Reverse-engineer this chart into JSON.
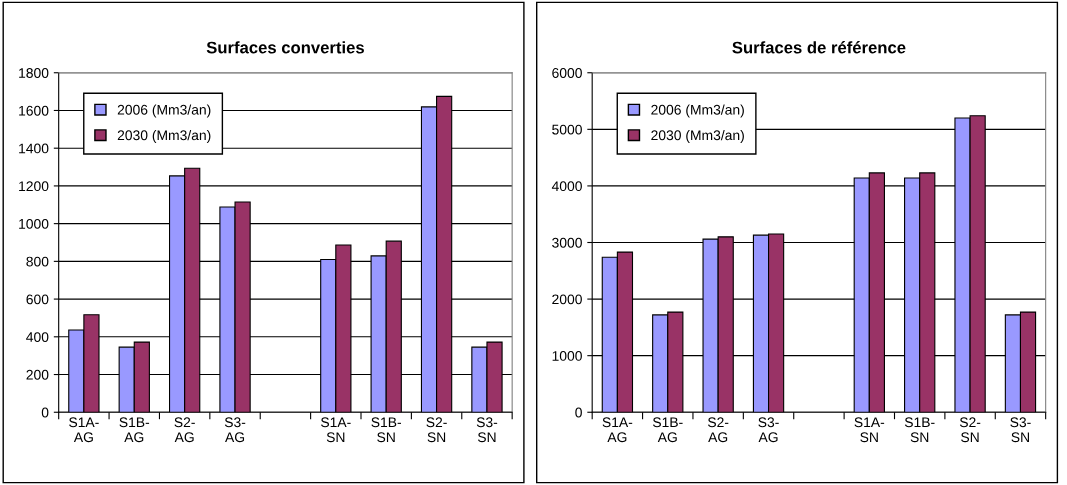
{
  "chart_data": [
    {
      "type": "bar",
      "title": "Surfaces converties",
      "categories": [
        "S1A-\nAG",
        "S1B-\nAG",
        "S2-\nAG",
        "S3-\nAG",
        null,
        "S1A-\nSN",
        "S1B-\nSN",
        "S2-\nSN",
        "S3-\nSN"
      ],
      "series": [
        {
          "name": "2006 (Mm3/an)",
          "color": "#9999ff",
          "values": [
            436,
            345,
            1253,
            1088,
            null,
            810,
            829,
            1619,
            345
          ]
        },
        {
          "name": "2030 (Mm3/an)",
          "color": "#993366",
          "values": [
            517,
            372,
            1294,
            1115,
            null,
            887,
            907,
            1675,
            372
          ]
        }
      ],
      "ylim": [
        0,
        1800
      ],
      "yticks": [
        0,
        200,
        400,
        600,
        800,
        1000,
        1200,
        1400,
        1600,
        1800
      ],
      "grid": "y",
      "legend": "top left"
    },
    {
      "type": "bar",
      "title": "Surfaces de référence",
      "categories": [
        "S1A-\nAG",
        "S1B-\nAG",
        "S2-\nAG",
        "S3-\nAG",
        null,
        "S1A-\nSN",
        "S1B-\nSN",
        "S2-\nSN",
        "S3-\nSN"
      ],
      "series": [
        {
          "name": "2006 (Mm3/an)",
          "color": "#9999ff",
          "values": [
            2740,
            1720,
            3060,
            3130,
            null,
            4140,
            4140,
            5200,
            1720
          ]
        },
        {
          "name": "2030 (Mm3/an)",
          "color": "#993366",
          "values": [
            2830,
            1770,
            3100,
            3150,
            null,
            4230,
            4230,
            5240,
            1770
          ]
        }
      ],
      "ylim": [
        0,
        6000
      ],
      "yticks": [
        0,
        1000,
        2000,
        3000,
        4000,
        5000,
        6000
      ],
      "grid": "y",
      "legend": "top left"
    }
  ]
}
